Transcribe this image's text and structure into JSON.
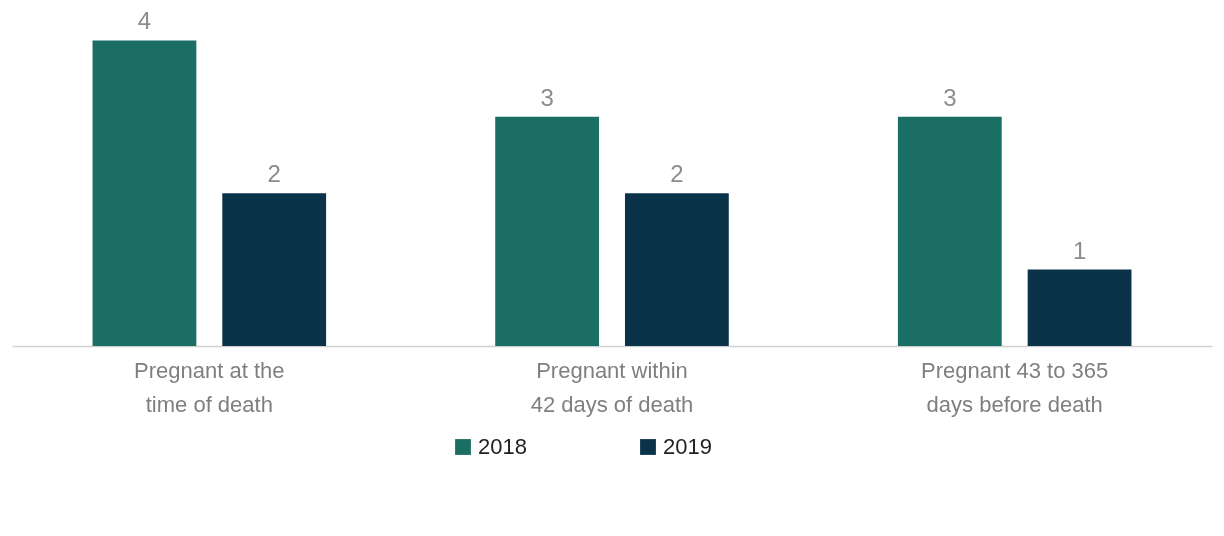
{
  "chart_data": {
    "type": "bar",
    "categories": [
      "Pregnant at the time of death",
      "Pregnant within 42 days of death",
      "Pregnant 43 to 365 days before death"
    ],
    "series": [
      {
        "name": "2018",
        "color": "#1a6e63",
        "values": [
          4,
          3,
          3
        ]
      },
      {
        "name": "2019",
        "color": "#0a3349",
        "values": [
          2,
          2,
          1
        ]
      }
    ],
    "data_labels": true,
    "legend": "bottom",
    "grid": false
  }
}
